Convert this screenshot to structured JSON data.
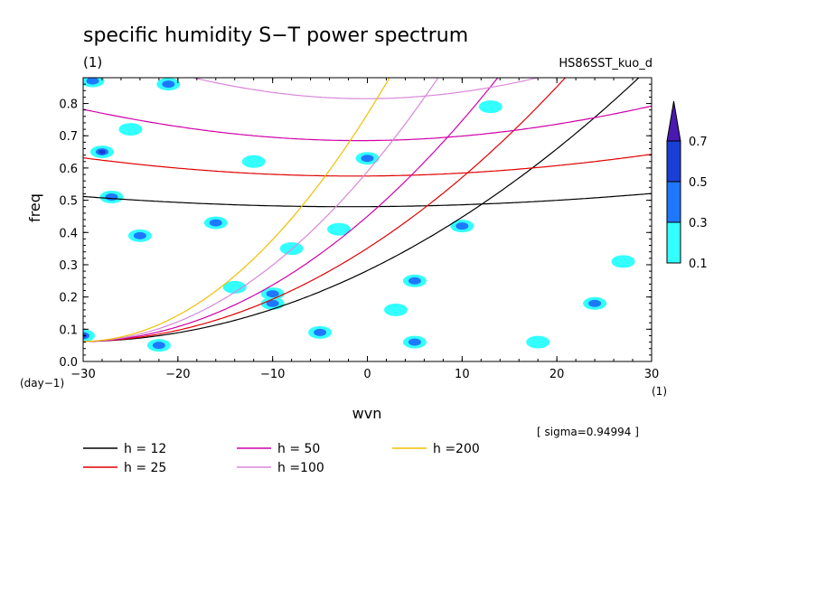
{
  "chart_data": {
    "type": "heatmap",
    "title": "specific humidity S−T power spectrum",
    "unit_label": "(1)",
    "run_label": "HS86SST_kuo_d",
    "xlabel": "wvn",
    "x_unit": "(1)",
    "ylabel": "freq",
    "y_unit": "(day−1)",
    "xlim": [
      -30,
      30
    ],
    "ylim": [
      0,
      0.88
    ],
    "x_ticks": [
      "−30",
      "−20",
      "−10",
      "0",
      "10",
      "20",
      "30"
    ],
    "y_ticks": [
      "0.0",
      "0.1",
      "0.2",
      "0.3",
      "0.4",
      "0.5",
      "0.6",
      "0.7",
      "0.8"
    ],
    "sigma_note": "[ sigma=0.94994 ]",
    "colorbar": {
      "levels": [
        "0.1",
        "0.3",
        "0.5",
        "0.7"
      ],
      "colors": [
        "#33ffff",
        "#1f77ff",
        "#1a3fd6",
        "#4a1ab0"
      ]
    },
    "contour_blobs": [
      {
        "x": -30,
        "y": 0.08,
        "level": 3
      },
      {
        "x": -29,
        "y": 0.87,
        "level": 2
      },
      {
        "x": -28,
        "y": 0.65,
        "level": 3
      },
      {
        "x": -27,
        "y": 0.51,
        "level": 2
      },
      {
        "x": -25,
        "y": 0.72,
        "level": 1
      },
      {
        "x": -24,
        "y": 0.39,
        "level": 2
      },
      {
        "x": -22,
        "y": 0.05,
        "level": 2
      },
      {
        "x": -21,
        "y": 0.86,
        "level": 2
      },
      {
        "x": -16,
        "y": 0.43,
        "level": 2
      },
      {
        "x": -14,
        "y": 0.23,
        "level": 1
      },
      {
        "x": -12,
        "y": 0.62,
        "level": 1
      },
      {
        "x": -10,
        "y": 0.18,
        "level": 2
      },
      {
        "x": -10,
        "y": 0.21,
        "level": 2
      },
      {
        "x": -8,
        "y": 0.35,
        "level": 1
      },
      {
        "x": -5,
        "y": 0.09,
        "level": 2
      },
      {
        "x": -3,
        "y": 0.41,
        "level": 1
      },
      {
        "x": 0,
        "y": 0.63,
        "level": 2
      },
      {
        "x": 3,
        "y": 0.16,
        "level": 1
      },
      {
        "x": 5,
        "y": 0.06,
        "level": 2
      },
      {
        "x": 5,
        "y": 0.25,
        "level": 2
      },
      {
        "x": 10,
        "y": 0.42,
        "level": 2
      },
      {
        "x": 13,
        "y": 0.79,
        "level": 1
      },
      {
        "x": 18,
        "y": 0.06,
        "level": 1
      },
      {
        "x": 24,
        "y": 0.18,
        "level": 2
      },
      {
        "x": 27,
        "y": 0.31,
        "level": 1
      }
    ],
    "series": [
      {
        "name": "h = 12",
        "h": 12,
        "color": "#000000"
      },
      {
        "name": "h = 25",
        "h": 25,
        "color": "#e00000"
      },
      {
        "name": "h = 50",
        "h": 50,
        "color": "#d000a8"
      },
      {
        "name": "h =100",
        "h": 100,
        "color": "#d888d8"
      },
      {
        "name": "h =200",
        "h": 200,
        "color": "#f0c000"
      }
    ]
  }
}
